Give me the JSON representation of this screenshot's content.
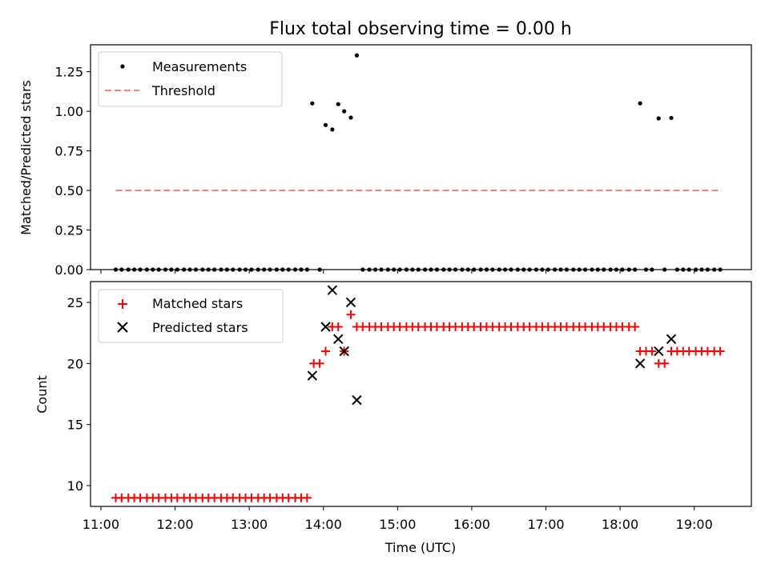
{
  "chart_data": [
    {
      "type": "scatter",
      "title": "Flux total observing time = 0.00 h",
      "ylabel": "Matched/Predicted stars",
      "xlabel": "",
      "x_ticks": [
        "11:00",
        "12:00",
        "13:00",
        "14:00",
        "15:00",
        "16:00",
        "17:00",
        "18:00",
        "19:00"
      ],
      "y_ticks": [
        "0.00",
        "0.25",
        "0.50",
        "0.75",
        "1.00",
        "1.25"
      ],
      "ylim": [
        0,
        1.42
      ],
      "xlim_hours": [
        10.86,
        19.77
      ],
      "legend": {
        "placement": "upper-left",
        "entries": [
          "Measurements",
          "Threshold"
        ]
      },
      "threshold": {
        "name": "Threshold",
        "value": 0.5,
        "x_start": 11.2,
        "x_end": 19.37,
        "color": "#ff7f7f"
      },
      "nonzero_points": [
        {
          "x": 13.85,
          "y": 1.05
        },
        {
          "x": 14.03,
          "y": 0.913
        },
        {
          "x": 14.12,
          "y": 0.885
        },
        {
          "x": 14.2,
          "y": 1.045
        },
        {
          "x": 14.28,
          "y": 1.0
        },
        {
          "x": 14.37,
          "y": 0.96
        },
        {
          "x": 14.45,
          "y": 1.353
        },
        {
          "x": 18.27,
          "y": 1.05
        },
        {
          "x": 18.52,
          "y": 0.955
        },
        {
          "x": 18.69,
          "y": 0.958
        }
      ],
      "zero_points_x": [
        11.2,
        11.28,
        11.37,
        11.45,
        11.53,
        11.62,
        11.7,
        11.78,
        11.87,
        11.95,
        12.03,
        12.12,
        12.2,
        12.28,
        12.37,
        12.45,
        12.53,
        12.62,
        12.7,
        12.78,
        12.87,
        12.95,
        13.03,
        13.12,
        13.2,
        13.28,
        13.37,
        13.45,
        13.53,
        13.62,
        13.7,
        13.78,
        13.95,
        14.53,
        14.62,
        14.7,
        14.78,
        14.87,
        14.95,
        15.03,
        15.12,
        15.2,
        15.28,
        15.37,
        15.45,
        15.53,
        15.62,
        15.7,
        15.78,
        15.87,
        15.95,
        16.03,
        16.12,
        16.2,
        16.28,
        16.37,
        16.45,
        16.53,
        16.62,
        16.7,
        16.78,
        16.87,
        16.95,
        17.03,
        17.12,
        17.2,
        17.28,
        17.37,
        17.45,
        17.53,
        17.62,
        17.7,
        17.78,
        17.87,
        17.95,
        18.03,
        18.12,
        18.2,
        18.35,
        18.43,
        18.6,
        18.77,
        18.85,
        18.93,
        19.02,
        19.1,
        19.18,
        19.27,
        19.35
      ]
    },
    {
      "type": "scatter",
      "xlabel": "Time (UTC)",
      "ylabel": "Count",
      "x_ticks": [
        "11:00",
        "12:00",
        "13:00",
        "14:00",
        "15:00",
        "16:00",
        "17:00",
        "18:00",
        "19:00"
      ],
      "y_ticks": [
        "10",
        "15",
        "20",
        "25"
      ],
      "ylim": [
        8.3,
        26.7
      ],
      "xlim_hours": [
        10.86,
        19.77
      ],
      "legend": {
        "placement": "upper-left",
        "entries": [
          "Matched stars",
          "Predicted stars"
        ]
      },
      "series": [
        {
          "name": "Matched stars",
          "marker": "plus",
          "color": "#ff0000",
          "points": [
            [
              11.2,
              9
            ],
            [
              11.28,
              9
            ],
            [
              11.37,
              9
            ],
            [
              11.45,
              9
            ],
            [
              11.53,
              9
            ],
            [
              11.62,
              9
            ],
            [
              11.7,
              9
            ],
            [
              11.78,
              9
            ],
            [
              11.87,
              9
            ],
            [
              11.95,
              9
            ],
            [
              12.03,
              9
            ],
            [
              12.12,
              9
            ],
            [
              12.2,
              9
            ],
            [
              12.28,
              9
            ],
            [
              12.37,
              9
            ],
            [
              12.45,
              9
            ],
            [
              12.53,
              9
            ],
            [
              12.62,
              9
            ],
            [
              12.7,
              9
            ],
            [
              12.78,
              9
            ],
            [
              12.87,
              9
            ],
            [
              12.95,
              9
            ],
            [
              13.03,
              9
            ],
            [
              13.12,
              9
            ],
            [
              13.2,
              9
            ],
            [
              13.28,
              9
            ],
            [
              13.37,
              9
            ],
            [
              13.45,
              9
            ],
            [
              13.53,
              9
            ],
            [
              13.62,
              9
            ],
            [
              13.7,
              9
            ],
            [
              13.78,
              9
            ],
            [
              13.87,
              20
            ],
            [
              13.95,
              20
            ],
            [
              14.03,
              21
            ],
            [
              14.12,
              23
            ],
            [
              14.2,
              23
            ],
            [
              14.28,
              21
            ],
            [
              14.37,
              24
            ],
            [
              14.45,
              23
            ],
            [
              14.53,
              23
            ],
            [
              14.62,
              23
            ],
            [
              14.7,
              23
            ],
            [
              14.78,
              23
            ],
            [
              14.87,
              23
            ],
            [
              14.95,
              23
            ],
            [
              15.03,
              23
            ],
            [
              15.12,
              23
            ],
            [
              15.2,
              23
            ],
            [
              15.28,
              23
            ],
            [
              15.37,
              23
            ],
            [
              15.45,
              23
            ],
            [
              15.53,
              23
            ],
            [
              15.62,
              23
            ],
            [
              15.7,
              23
            ],
            [
              15.78,
              23
            ],
            [
              15.87,
              23
            ],
            [
              15.95,
              23
            ],
            [
              16.03,
              23
            ],
            [
              16.12,
              23
            ],
            [
              16.2,
              23
            ],
            [
              16.28,
              23
            ],
            [
              16.37,
              23
            ],
            [
              16.45,
              23
            ],
            [
              16.53,
              23
            ],
            [
              16.62,
              23
            ],
            [
              16.7,
              23
            ],
            [
              16.78,
              23
            ],
            [
              16.87,
              23
            ],
            [
              16.95,
              23
            ],
            [
              17.03,
              23
            ],
            [
              17.12,
              23
            ],
            [
              17.2,
              23
            ],
            [
              17.28,
              23
            ],
            [
              17.37,
              23
            ],
            [
              17.45,
              23
            ],
            [
              17.53,
              23
            ],
            [
              17.62,
              23
            ],
            [
              17.7,
              23
            ],
            [
              17.78,
              23
            ],
            [
              17.87,
              23
            ],
            [
              17.95,
              23
            ],
            [
              18.03,
              23
            ],
            [
              18.12,
              23
            ],
            [
              18.2,
              23
            ],
            [
              18.27,
              21
            ],
            [
              18.35,
              21
            ],
            [
              18.43,
              21
            ],
            [
              18.52,
              20
            ],
            [
              18.6,
              20
            ],
            [
              18.69,
              21
            ],
            [
              18.77,
              21
            ],
            [
              18.85,
              21
            ],
            [
              18.93,
              21
            ],
            [
              19.02,
              21
            ],
            [
              19.1,
              21
            ],
            [
              19.18,
              21
            ],
            [
              19.27,
              21
            ],
            [
              19.35,
              21
            ]
          ]
        },
        {
          "name": "Predicted stars",
          "marker": "x",
          "color": "#000000",
          "points": [
            [
              13.85,
              19
            ],
            [
              14.03,
              23
            ],
            [
              14.12,
              26
            ],
            [
              14.2,
              22
            ],
            [
              14.28,
              21
            ],
            [
              14.37,
              25
            ],
            [
              14.45,
              17
            ],
            [
              18.27,
              20
            ],
            [
              18.52,
              21
            ],
            [
              18.69,
              22
            ]
          ]
        }
      ]
    }
  ]
}
